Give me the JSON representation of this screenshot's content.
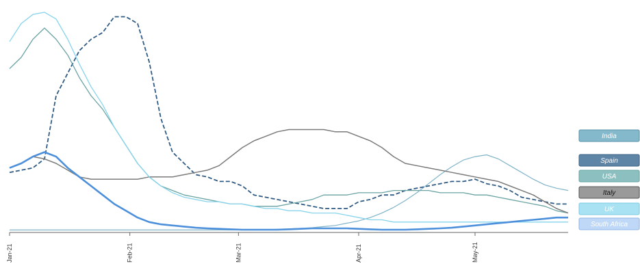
{
  "chart_data": {
    "type": "line",
    "title": "",
    "xlabel": "",
    "ylabel": "",
    "x": [
      "2021-01-01",
      "2021-01-04",
      "2021-01-07",
      "2021-01-10",
      "2021-01-13",
      "2021-01-16",
      "2021-01-19",
      "2021-01-22",
      "2021-01-25",
      "2021-01-28",
      "2021-01-31",
      "2021-02-03",
      "2021-02-06",
      "2021-02-09",
      "2021-02-12",
      "2021-02-15",
      "2021-02-18",
      "2021-02-21",
      "2021-02-24",
      "2021-02-27",
      "2021-03-02",
      "2021-03-05",
      "2021-03-08",
      "2021-03-11",
      "2021-03-14",
      "2021-03-17",
      "2021-03-20",
      "2021-03-23",
      "2021-03-26",
      "2021-03-29",
      "2021-04-01",
      "2021-04-04",
      "2021-04-07",
      "2021-04-10",
      "2021-04-13",
      "2021-04-16",
      "2021-04-19",
      "2021-04-22",
      "2021-04-25",
      "2021-04-28",
      "2021-05-01",
      "2021-05-04",
      "2021-05-07",
      "2021-05-10",
      "2021-05-13",
      "2021-05-16",
      "2021-05-19",
      "2021-05-22",
      "2021-05-25"
    ],
    "x_ticks": [
      "Jan-21",
      "Feb-21",
      "Mar-21",
      "Apr-21",
      "May-21"
    ],
    "ylim": [
      0,
      100
    ],
    "grid": false,
    "legend_position": "right",
    "series": [
      {
        "name": "India",
        "color": "#7fb3c8",
        "style": "solid",
        "width": 1.2,
        "values": [
          0.5,
          0.5,
          0.5,
          0.5,
          0.5,
          0.5,
          0.5,
          0.5,
          0.5,
          0.5,
          0.5,
          0.5,
          0.5,
          0.5,
          0.5,
          0.5,
          0.5,
          0.5,
          0.5,
          0.5,
          0.5,
          0.5,
          0.6,
          0.8,
          1,
          1.2,
          1.5,
          2,
          2.5,
          3.5,
          4.5,
          6,
          8,
          10.5,
          13.5,
          17,
          21,
          25,
          28.5,
          31.5,
          33,
          33.8,
          32,
          29,
          26,
          23,
          20.5,
          19,
          18
        ]
      },
      {
        "name": "Spain",
        "color": "#2f5b84",
        "style": "dashed",
        "width": 1.8,
        "values": [
          26,
          27,
          28,
          32,
          60,
          70,
          80,
          85,
          88,
          95,
          95,
          92,
          75,
          50,
          35,
          30,
          25,
          24,
          22,
          22,
          20,
          16,
          15,
          14,
          13,
          12,
          11,
          10,
          10,
          10,
          13,
          14,
          16,
          16,
          18,
          19,
          20,
          21,
          22,
          22,
          23,
          21,
          20,
          18,
          15,
          14,
          13,
          12,
          12
        ]
      },
      {
        "name": "USA",
        "color": "#6aa3a3",
        "style": "solid",
        "width": 1.3,
        "values": [
          72,
          77,
          85,
          90,
          85,
          78,
          68,
          60,
          54,
          46,
          38,
          30,
          24,
          20,
          18,
          16,
          15,
          14,
          13,
          12,
          12,
          11,
          11,
          11,
          12,
          13,
          14,
          16,
          16,
          16,
          17,
          17,
          17,
          18,
          18,
          18,
          18,
          17,
          17,
          17,
          16,
          16,
          15,
          14,
          13,
          12,
          11,
          9,
          8
        ]
      },
      {
        "name": "Italy",
        "color": "#7a7a7a",
        "style": "solid",
        "width": 1.5,
        "values": [
          28,
          30,
          33,
          32,
          30,
          27,
          24,
          23,
          23,
          23,
          23,
          23,
          24,
          24,
          24,
          25,
          26,
          27,
          29,
          33,
          37,
          40,
          42,
          44,
          45,
          45,
          45,
          45,
          44,
          44,
          42,
          40,
          37,
          33,
          30,
          29,
          28,
          27,
          26,
          25,
          24,
          23,
          22,
          20,
          18,
          16,
          13,
          10,
          8
        ]
      },
      {
        "name": "UK",
        "color": "#86d4ec",
        "style": "solid",
        "width": 1.3,
        "values": [
          84,
          92,
          96,
          97,
          94,
          85,
          74,
          64,
          56,
          46,
          38,
          30,
          24,
          20,
          17,
          15,
          14,
          13,
          13,
          12,
          12,
          11,
          10,
          10,
          9,
          9,
          8,
          8,
          8,
          7,
          6,
          5,
          5,
          4,
          4,
          4,
          4,
          4,
          4,
          4,
          4,
          4,
          4,
          4,
          4,
          4,
          4,
          4,
          4
        ]
      },
      {
        "name": "South Africa",
        "color": "#4c8fdb",
        "style": "solid",
        "width": 2.6,
        "values": [
          28,
          30,
          33,
          35,
          33,
          28,
          24,
          20,
          16,
          12,
          9,
          6,
          4,
          3,
          2.5,
          2,
          1.5,
          1.2,
          1,
          0.8,
          0.6,
          0.6,
          0.6,
          0.6,
          0.8,
          1,
          1.2,
          1.2,
          1.2,
          1.2,
          1,
          0.8,
          0.6,
          0.6,
          0.6,
          0.8,
          1,
          1.2,
          1.5,
          2,
          2.5,
          3,
          3.5,
          4,
          4.5,
          5,
          5.5,
          6,
          6
        ]
      }
    ]
  },
  "legend": {
    "items": [
      {
        "label": "India",
        "bg": "#84b9cc",
        "border": "#5a93ab",
        "text_color": "#ffffff"
      },
      {
        "label": "Spain",
        "bg": "#5f85a6",
        "border": "#3f6688",
        "text_color": "#ffffff"
      },
      {
        "label": "USA",
        "bg": "#8cc0c0",
        "border": "#6aa3a3",
        "text_color": "#ffffff"
      },
      {
        "label": "Italy",
        "bg": "#9a9a9a",
        "border": "#555555",
        "text_color": "#111111"
      },
      {
        "label": "UK",
        "bg": "#a9e2f3",
        "border": "#7ccbe6",
        "text_color": "#ffffff"
      },
      {
        "label": "South Africa",
        "bg": "#bfd8f7",
        "border": "#8fb6e6",
        "text_color": "#ffffff"
      }
    ]
  }
}
